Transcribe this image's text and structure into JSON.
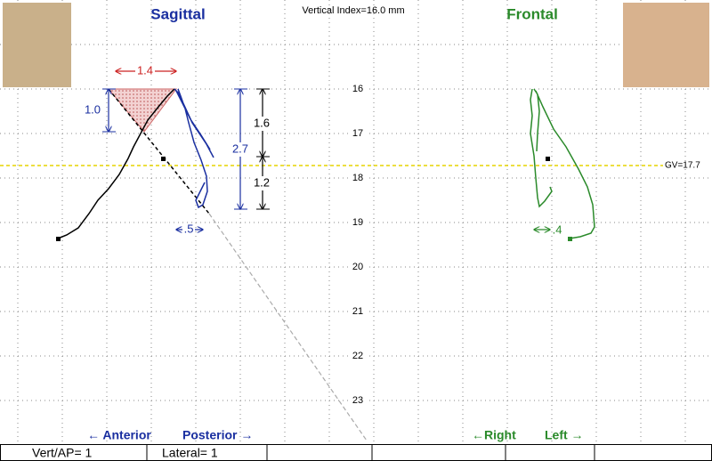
{
  "header": {
    "sagittal": "Sagittal",
    "vertical_index": "Vertical Index=16.0 mm",
    "frontal": "Frontal"
  },
  "scale_labels": [
    "16",
    "17",
    "18",
    "19",
    "20",
    "21",
    "22",
    "23"
  ],
  "gv_label": "GV=17.7",
  "sagittal_measures": {
    "horizontal": "1.4",
    "vertical": "1.0",
    "upper": "1.6",
    "lower": "1.2",
    "total": "2.7",
    "width": ".5"
  },
  "frontal_measures": {
    "width": ".4"
  },
  "direction_labels": {
    "anterior": "← Anterior",
    "posterior": "Posterior →",
    "right": "←Right",
    "left": "Left →"
  },
  "status_bar": {
    "vert_ap": "Vert/AP= 1",
    "lateral": "Lateral= 1"
  }
}
